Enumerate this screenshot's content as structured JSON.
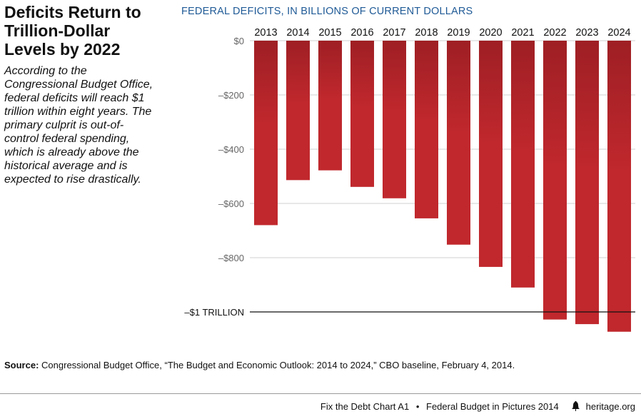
{
  "heading": "Deficits Return to Trillion-Dollar Levels by 2022",
  "description": "According to the Congressional Budget Office, federal deficits will reach $1 trillion within eight years. The primary culprit is out-of-control federal spending, which is already above the historical average and is expected to rise drastically.",
  "source": {
    "label": "Source:",
    "text": "Congressional Budget Office, “The Budget and Economic Outlook: 2014 to 2024,” CBO baseline, February 4, 2014."
  },
  "footer": {
    "chart_id": "Fix the Debt Chart A1",
    "separator": "•",
    "publication": "Federal Budget in Pictures 2014",
    "brand": "heritage.org",
    "brand_icon": "liberty-bell-icon"
  },
  "chart_data": {
    "type": "bar",
    "title": "FEDERAL DEFICITS, IN BILLIONS OF CURRENT DOLLARS",
    "categories": [
      "2013",
      "2014",
      "2015",
      "2016",
      "2017",
      "2018",
      "2019",
      "2020",
      "2021",
      "2022",
      "2023",
      "2024"
    ],
    "values": [
      -680,
      -514,
      -478,
      -539,
      -581,
      -655,
      -752,
      -834,
      -910,
      -1028,
      -1045,
      -1073
    ],
    "ylim": [
      -1080,
      0
    ],
    "yticks": [
      {
        "value": 0,
        "label": "$0"
      },
      {
        "value": -200,
        "label": "–$200"
      },
      {
        "value": -400,
        "label": "–$400"
      },
      {
        "value": -600,
        "label": "–$600"
      },
      {
        "value": -800,
        "label": "–$800"
      },
      {
        "value": -1000,
        "label": "–$1 TRILLION"
      }
    ],
    "grid": true,
    "bar_color": "#c0282d",
    "bar_color_top": "#9e1f24",
    "grid_color": "#d0d0d0",
    "reference_line_color": "#111111"
  }
}
